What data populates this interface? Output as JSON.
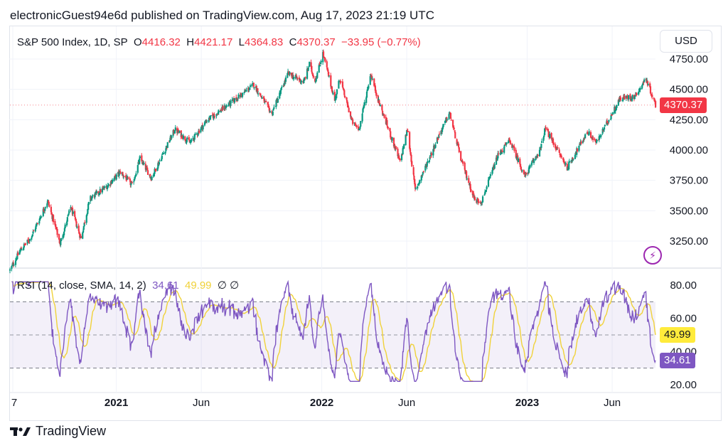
{
  "header": {
    "published": "electronicGuest94e6d published on TradingView.com, Aug 17, 2023 21:19 UTC"
  },
  "ohlc": {
    "symbol": "S&P 500 Index, 1D, SP",
    "open_label": "O",
    "open": "4416.32",
    "high_label": "H",
    "high": "4421.17",
    "low_label": "L",
    "low": "4364.83",
    "close_label": "C",
    "close": "4370.37",
    "change": "−33.95 (−0.77%)"
  },
  "currency": "USD",
  "rsi": {
    "label": "RSI (14, close, SMA, 14, 2)",
    "value": "34.61",
    "sma_value": "49.99",
    "extra": "∅ ∅"
  },
  "brand": {
    "name": "TradingView"
  },
  "icons": {
    "logo": "tradingview-logo-icon",
    "flash": "lightning-icon"
  },
  "colors": {
    "up": "#089981",
    "down": "#f23645",
    "rsi": "#7e57c2",
    "rsi_sma": "#f0d23a",
    "band": "#7e57c2"
  },
  "chart_data": [
    {
      "type": "candlestick",
      "title": "S&P 500 Index, 1D, SP",
      "y_ticks": [
        "3250.00",
        "3500.00",
        "3750.00",
        "4000.00",
        "4250.00",
        "4500.00",
        "4750.00"
      ],
      "ylim": [
        3140,
        4820
      ],
      "last_price": "4370.37",
      "x_ticks": [
        {
          "label": "7",
          "date": "2020-07-01",
          "bold": false
        },
        {
          "label": "2021",
          "date": "2021-01-01",
          "bold": true
        },
        {
          "label": "Jun",
          "date": "2021-06-01",
          "bold": false
        },
        {
          "label": "2022",
          "date": "2022-01-01",
          "bold": true
        },
        {
          "label": "Jun",
          "date": "2022-06-01",
          "bold": false
        },
        {
          "label": "2023",
          "date": "2023-01-01",
          "bold": true
        },
        {
          "label": "Jun",
          "date": "2023-06-01",
          "bold": false
        }
      ],
      "xlim": [
        "2020-06-26",
        "2023-08-17"
      ],
      "series": [
        {
          "values": [
            {
              "date": "2020-06-26",
              "close": 3010
            },
            {
              "date": "2020-07-15",
              "close": 3180
            },
            {
              "date": "2020-08-01",
              "close": 3270
            },
            {
              "date": "2020-09-01",
              "close": 3580
            },
            {
              "date": "2020-09-23",
              "close": 3230
            },
            {
              "date": "2020-10-12",
              "close": 3530
            },
            {
              "date": "2020-10-30",
              "close": 3270
            },
            {
              "date": "2020-11-15",
              "close": 3600
            },
            {
              "date": "2020-12-15",
              "close": 3700
            },
            {
              "date": "2021-01-08",
              "close": 3820
            },
            {
              "date": "2021-01-29",
              "close": 3710
            },
            {
              "date": "2021-02-12",
              "close": 3930
            },
            {
              "date": "2021-03-04",
              "close": 3770
            },
            {
              "date": "2021-04-15",
              "close": 4170
            },
            {
              "date": "2021-05-12",
              "close": 4060
            },
            {
              "date": "2021-06-10",
              "close": 4240
            },
            {
              "date": "2021-07-15",
              "close": 4360
            },
            {
              "date": "2021-08-15",
              "close": 4470
            },
            {
              "date": "2021-09-02",
              "close": 4540
            },
            {
              "date": "2021-10-04",
              "close": 4300
            },
            {
              "date": "2021-11-02",
              "close": 4630
            },
            {
              "date": "2021-11-30",
              "close": 4560
            },
            {
              "date": "2021-12-10",
              "close": 4710
            },
            {
              "date": "2021-12-20",
              "close": 4570
            },
            {
              "date": "2022-01-03",
              "close": 4796
            },
            {
              "date": "2022-01-24",
              "close": 4410
            },
            {
              "date": "2022-02-02",
              "close": 4590
            },
            {
              "date": "2022-02-24",
              "close": 4230
            },
            {
              "date": "2022-03-08",
              "close": 4170
            },
            {
              "date": "2022-03-29",
              "close": 4630
            },
            {
              "date": "2022-04-12",
              "close": 4400
            },
            {
              "date": "2022-04-28",
              "close": 4190
            },
            {
              "date": "2022-05-20",
              "close": 3900
            },
            {
              "date": "2022-06-02",
              "close": 4170
            },
            {
              "date": "2022-06-16",
              "close": 3670
            },
            {
              "date": "2022-07-08",
              "close": 3900
            },
            {
              "date": "2022-07-29",
              "close": 4130
            },
            {
              "date": "2022-08-16",
              "close": 4305
            },
            {
              "date": "2022-09-06",
              "close": 3910
            },
            {
              "date": "2022-09-30",
              "close": 3585
            },
            {
              "date": "2022-10-12",
              "close": 3577
            },
            {
              "date": "2022-11-10",
              "close": 3956
            },
            {
              "date": "2022-12-01",
              "close": 4080
            },
            {
              "date": "2022-12-28",
              "close": 3783
            },
            {
              "date": "2023-01-25",
              "close": 4016
            },
            {
              "date": "2023-02-02",
              "close": 4179
            },
            {
              "date": "2023-03-13",
              "close": 3855
            },
            {
              "date": "2023-04-18",
              "close": 4150
            },
            {
              "date": "2023-05-04",
              "close": 4060
            },
            {
              "date": "2023-06-15",
              "close": 4425
            },
            {
              "date": "2023-07-11",
              "close": 4440
            },
            {
              "date": "2023-07-31",
              "close": 4589
            },
            {
              "date": "2023-08-17",
              "close": 4370
            }
          ]
        }
      ]
    },
    {
      "type": "line",
      "title": "RSI (14, close, SMA, 14, 2)",
      "y_ticks": [
        "20.00",
        "40.00",
        "60.00",
        "80.00"
      ],
      "ylim": [
        15,
        85
      ],
      "levels": [
        70,
        50,
        30
      ],
      "xlim": [
        "2020-06-26",
        "2023-08-17"
      ],
      "series": [
        {
          "name": "RSI",
          "last": "34.61"
        },
        {
          "name": "SMA",
          "last": "49.99"
        }
      ]
    }
  ]
}
